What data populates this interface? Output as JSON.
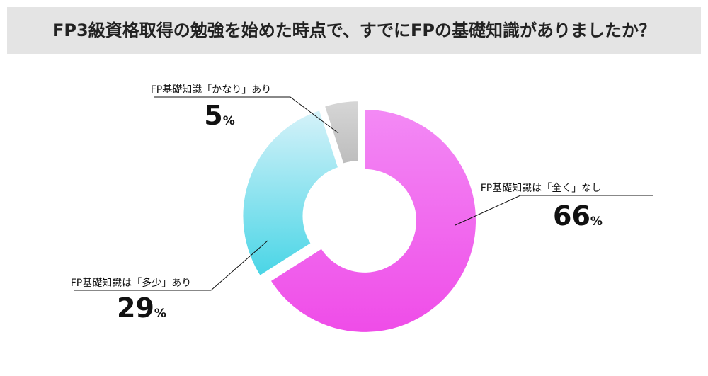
{
  "chart_data": {
    "type": "pie",
    "variant": "donut",
    "title": "FP3級資格取得の勉強を始めた時点で、すでにFPの基礎知識がありましたか？",
    "start_angle_deg": 0,
    "direction": "clockwise",
    "categories": [
      "FP基礎知識は「全く」なし",
      "FP基礎知識は「多少」あり",
      "FP基礎知識「かなり」あり"
    ],
    "values": [
      66,
      29,
      5
    ],
    "unit": "%",
    "colors": [
      [
        "#ef4ce8",
        "#f38af5"
      ],
      [
        "#49d5e6",
        "#d6f2f9"
      ],
      [
        "#bdbdbd",
        "#d6d6d6"
      ]
    ],
    "title_bar_color": "#e4e4e4"
  }
}
